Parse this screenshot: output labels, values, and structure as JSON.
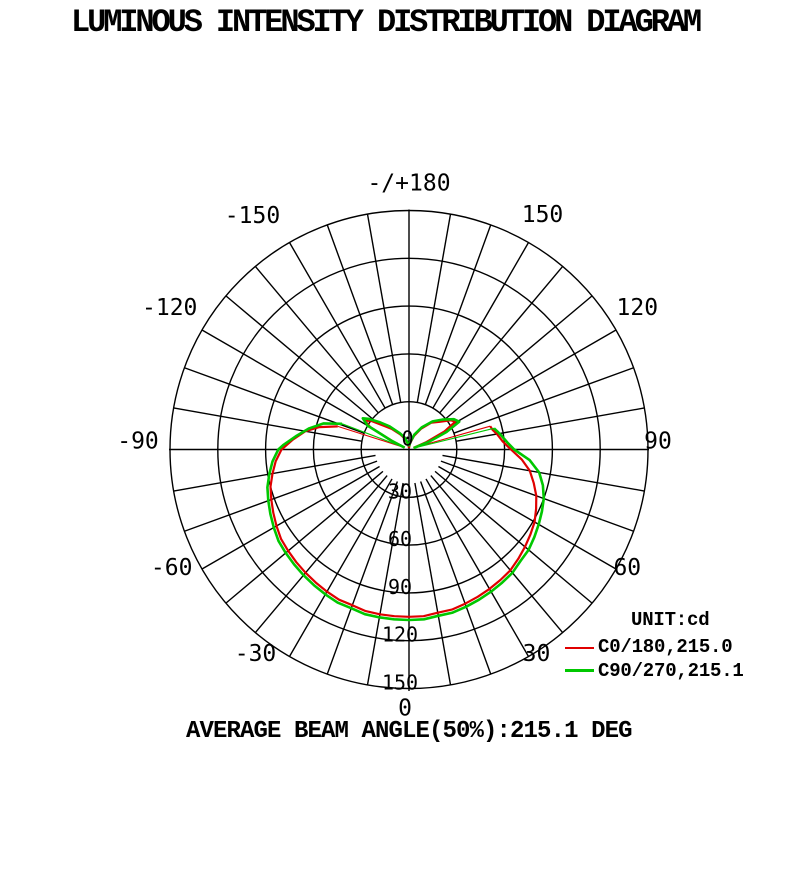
{
  "title": "LUMINOUS INTENSITY DISTRIBUTION DIAGRAM",
  "caption": "AVERAGE BEAM ANGLE(50%):215.1 DEG",
  "legend": {
    "unit_label": "UNIT:cd",
    "items": [
      {
        "label": "C0/180,215.0",
        "color": "#e00000"
      },
      {
        "label": "C90/270,215.1",
        "color": "#00c800"
      }
    ]
  },
  "chart_data": {
    "type": "polar",
    "unit": "cd",
    "angle_zero_position": "bottom",
    "angle_grid_step_deg": 10,
    "radial_ticks": [
      30,
      60,
      90,
      120,
      150
    ],
    "radial_max": 150,
    "grid_color": "#000000",
    "center_label": "0",
    "angle_labels": [
      {
        "angle": 0,
        "text": "0"
      },
      {
        "angle": 30,
        "text": "30"
      },
      {
        "angle": 60,
        "text": "60"
      },
      {
        "angle": 90,
        "text": "90"
      },
      {
        "angle": 120,
        "text": "120"
      },
      {
        "angle": 150,
        "text": "150"
      },
      {
        "angle": 180,
        "text": "-/+180"
      },
      {
        "angle": -30,
        "text": "-30"
      },
      {
        "angle": -60,
        "text": "-60"
      },
      {
        "angle": -90,
        "text": "-90"
      },
      {
        "angle": -120,
        "text": "-120"
      },
      {
        "angle": -150,
        "text": "-150"
      }
    ],
    "series": [
      {
        "name": "C0/180",
        "beam_angle_deg": 215.0,
        "color": "#e00000",
        "segments": [
          {
            "style": "thick",
            "points": [
              [
                -180,
                1
              ],
              [
                -170,
                3
              ],
              [
                -160,
                7
              ],
              [
                -150,
                11
              ],
              [
                -140,
                17
              ],
              [
                -133,
                22
              ],
              [
                -127,
                30
              ],
              [
                -123,
                33
              ],
              [
                -120,
                28
              ],
              [
                -117,
                12
              ],
              [
                -113,
                3
              ]
            ]
          },
          {
            "style": "thin",
            "points": [
              [
                -113,
                3
              ],
              [
                -108,
                47
              ]
            ]
          },
          {
            "style": "thick",
            "points": [
              [
                -108,
                47
              ],
              [
                -104,
                58
              ],
              [
                -100,
                66
              ],
              [
                -95,
                73
              ],
              [
                -90,
                80
              ],
              [
                -85,
                84
              ],
              [
                -80,
                87
              ],
              [
                -75,
                90
              ],
              [
                -70,
                92
              ],
              [
                -65,
                94
              ],
              [
                -60,
                96
              ],
              [
                -55,
                98
              ],
              [
                -50,
                99
              ],
              [
                -45,
                100
              ],
              [
                -40,
                101
              ],
              [
                -35,
                102
              ],
              [
                -30,
                103
              ],
              [
                -25,
                104
              ],
              [
                -20,
                104
              ],
              [
                -15,
                105
              ],
              [
                -10,
                105
              ],
              [
                -5,
                105
              ],
              [
                0,
                105
              ],
              [
                5,
                105
              ],
              [
                10,
                104
              ],
              [
                15,
                104
              ],
              [
                20,
                103
              ],
              [
                25,
                102
              ],
              [
                30,
                101
              ],
              [
                35,
                100
              ],
              [
                40,
                99
              ],
              [
                45,
                97
              ],
              [
                50,
                95
              ],
              [
                55,
                93
              ],
              [
                60,
                91
              ],
              [
                65,
                88
              ],
              [
                70,
                85
              ],
              [
                75,
                81
              ],
              [
                80,
                77
              ],
              [
                85,
                71
              ],
              [
                90,
                64
              ],
              [
                95,
                59
              ],
              [
                100,
                56
              ],
              [
                103,
                54
              ],
              [
                106,
                53
              ]
            ]
          },
          {
            "style": "thin",
            "points": [
              [
                106,
                53
              ],
              [
                109,
                3
              ]
            ]
          },
          {
            "style": "thick",
            "points": [
              [
                109,
                3
              ],
              [
                113,
                12
              ],
              [
                117,
                25
              ],
              [
                121,
                34
              ],
              [
                125,
                32
              ],
              [
                132,
                26
              ],
              [
                140,
                22
              ],
              [
                150,
                15
              ],
              [
                160,
                9
              ],
              [
                170,
                4
              ],
              [
                180,
                1
              ]
            ]
          }
        ]
      },
      {
        "name": "C90/270",
        "beam_angle_deg": 215.1,
        "color": "#00c800",
        "segments": [
          {
            "style": "thick",
            "points": [
              [
                -180,
                2
              ],
              [
                -170,
                4
              ],
              [
                -160,
                8
              ],
              [
                -150,
                12
              ],
              [
                -140,
                19
              ],
              [
                -133,
                25
              ],
              [
                -127,
                32
              ],
              [
                -124,
                35
              ],
              [
                -120,
                30
              ],
              [
                -117,
                13
              ],
              [
                -114,
                3
              ]
            ]
          },
          {
            "style": "thin",
            "points": [
              [
                -114,
                3
              ],
              [
                -111,
                45
              ]
            ]
          },
          {
            "style": "thick",
            "points": [
              [
                -111,
                45
              ],
              [
                -107,
                56
              ],
              [
                -102,
                64
              ],
              [
                -97,
                71
              ],
              [
                -92,
                79
              ],
              [
                -90,
                82
              ],
              [
                -85,
                86
              ],
              [
                -80,
                89
              ],
              [
                -75,
                92
              ],
              [
                -70,
                94
              ],
              [
                -65,
                96
              ],
              [
                -60,
                98
              ],
              [
                -55,
                100
              ],
              [
                -50,
                101
              ],
              [
                -45,
                102
              ],
              [
                -40,
                103
              ],
              [
                -35,
                104
              ],
              [
                -30,
                105
              ],
              [
                -25,
                106
              ],
              [
                -20,
                106
              ],
              [
                -15,
                107
              ],
              [
                -10,
                107
              ],
              [
                -5,
                107
              ],
              [
                0,
                107
              ],
              [
                5,
                107
              ],
              [
                10,
                106
              ],
              [
                15,
                106
              ],
              [
                20,
                105
              ],
              [
                25,
                104
              ],
              [
                30,
                103
              ],
              [
                35,
                102
              ],
              [
                40,
                101
              ],
              [
                45,
                99
              ],
              [
                50,
                98
              ],
              [
                55,
                96
              ],
              [
                60,
                94
              ],
              [
                65,
                92
              ],
              [
                70,
                90
              ],
              [
                75,
                87
              ],
              [
                80,
                83
              ],
              [
                85,
                76
              ],
              [
                90,
                66
              ],
              [
                94,
                62
              ],
              [
                98,
                59
              ],
              [
                101,
                57
              ],
              [
                104,
                55
              ]
            ]
          },
          {
            "style": "thin",
            "points": [
              [
                104,
                55
              ],
              [
                107,
                3
              ]
            ]
          },
          {
            "style": "thick",
            "points": [
              [
                107,
                3
              ],
              [
                111,
                13
              ],
              [
                115,
                26
              ],
              [
                119,
                36
              ],
              [
                124,
                34
              ],
              [
                132,
                28
              ],
              [
                140,
                23
              ],
              [
                150,
                16
              ],
              [
                160,
                10
              ],
              [
                170,
                5
              ],
              [
                180,
                2
              ]
            ]
          }
        ]
      }
    ]
  }
}
